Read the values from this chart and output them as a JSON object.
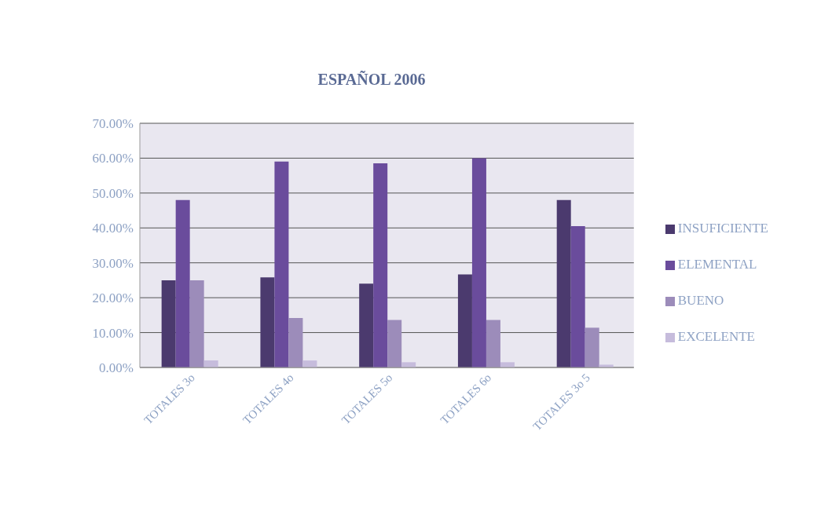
{
  "chart_data": {
    "type": "bar",
    "title": "ESPAÑOL 2006",
    "categories": [
      "TOTALES 3o",
      "TOTALES 4o",
      "TOTALES 5o",
      "TOTALES 6o",
      "TOTALES 3o 5"
    ],
    "series": [
      {
        "name": "INSUFICIENTE",
        "color": "#4b3a6e",
        "values": [
          25.0,
          25.8,
          24.0,
          26.7,
          48.0
        ]
      },
      {
        "name": "ELEMENTAL",
        "color": "#6a4c9c",
        "values": [
          48.0,
          59.0,
          58.5,
          60.0,
          40.5
        ]
      },
      {
        "name": "BUENO",
        "color": "#9c8cba",
        "values": [
          25.0,
          14.2,
          13.6,
          13.6,
          11.4
        ]
      },
      {
        "name": "EXCELENTE",
        "color": "#c6bcdc",
        "values": [
          2.0,
          2.0,
          1.5,
          1.5,
          0.8
        ]
      }
    ],
    "ylim": [
      0,
      70
    ],
    "yticks": [
      {
        "value": 0,
        "label": "0.00%"
      },
      {
        "value": 10,
        "label": "10.00%"
      },
      {
        "value": 20,
        "label": "20.00%"
      },
      {
        "value": 30,
        "label": "30.00%"
      },
      {
        "value": 40,
        "label": "40.00%"
      },
      {
        "value": 50,
        "label": "50.00%"
      },
      {
        "value": 60,
        "label": "60.00%"
      },
      {
        "value": 70,
        "label": "70.00%"
      }
    ],
    "grid": "y",
    "legend": "right"
  }
}
